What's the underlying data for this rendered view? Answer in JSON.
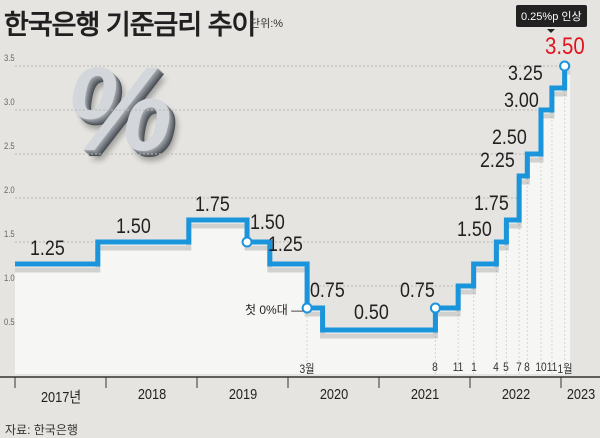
{
  "header": {
    "title": "한국은행 기준금리 추이",
    "unit": "단위:%"
  },
  "source": "자료: 한국은행",
  "callout": "0.25%p 인상",
  "annotation_first_zero": "첫 0%대",
  "decor_icon": "%",
  "colors": {
    "line": "#1a95dc",
    "highlight": "#e0141e",
    "background": "#e5e4e0",
    "area": "#f6f6f4"
  },
  "chart_data": {
    "type": "line",
    "step": true,
    "title": "한국은행 기준금리 추이",
    "ylabel": "단위:%",
    "ylim": [
      0,
      3.75
    ],
    "yticks": [
      "0.5",
      "1.0",
      "1.5",
      "2.0",
      "2.5",
      "3.0",
      "3.5"
    ],
    "grid": true,
    "xlim": [
      2017.0,
      2023.1
    ],
    "years": [
      "2017년",
      "2018",
      "2019",
      "2020",
      "2021",
      "2022",
      "2023"
    ],
    "month_labels": [
      {
        "t": 2020.21,
        "text": "3월"
      },
      {
        "t": 2021.62,
        "text": "8"
      },
      {
        "t": 2021.87,
        "text": "11"
      },
      {
        "t": 2022.04,
        "text": "1"
      },
      {
        "t": 2022.29,
        "text": "4"
      },
      {
        "t": 2022.4,
        "text": "5"
      },
      {
        "t": 2022.54,
        "text": "7"
      },
      {
        "t": 2022.63,
        "text": "8"
      },
      {
        "t": 2022.78,
        "text": "10"
      },
      {
        "t": 2022.9,
        "text": "11"
      },
      {
        "t": 2023.04,
        "text": "1월"
      }
    ],
    "points": [
      {
        "t": 2017.0,
        "rate": 1.25
      },
      {
        "t": 2017.91,
        "rate": 1.5
      },
      {
        "t": 2018.91,
        "rate": 1.75
      },
      {
        "t": 2019.55,
        "rate": 1.5
      },
      {
        "t": 2019.8,
        "rate": 1.25
      },
      {
        "t": 2020.21,
        "rate": 0.75
      },
      {
        "t": 2020.38,
        "rate": 0.5
      },
      {
        "t": 2021.62,
        "rate": 0.75
      },
      {
        "t": 2021.87,
        "rate": 1.0
      },
      {
        "t": 2022.04,
        "rate": 1.25
      },
      {
        "t": 2022.29,
        "rate": 1.5
      },
      {
        "t": 2022.4,
        "rate": 1.75
      },
      {
        "t": 2022.54,
        "rate": 2.25
      },
      {
        "t": 2022.63,
        "rate": 2.5
      },
      {
        "t": 2022.78,
        "rate": 3.0
      },
      {
        "t": 2022.9,
        "rate": 3.25
      },
      {
        "t": 2023.04,
        "rate": 3.5
      }
    ],
    "end_t": 2023.1,
    "markers": [
      2019.55,
      2020.21,
      2021.62,
      2023.04
    ],
    "data_labels": [
      "1.25",
      "1.50",
      "1.75",
      "1.50",
      "1.25",
      "0.75",
      "0.50",
      "0.75",
      "1.50",
      "1.75",
      "2.25",
      "2.50",
      "3.00",
      "3.25",
      "3.50"
    ]
  }
}
